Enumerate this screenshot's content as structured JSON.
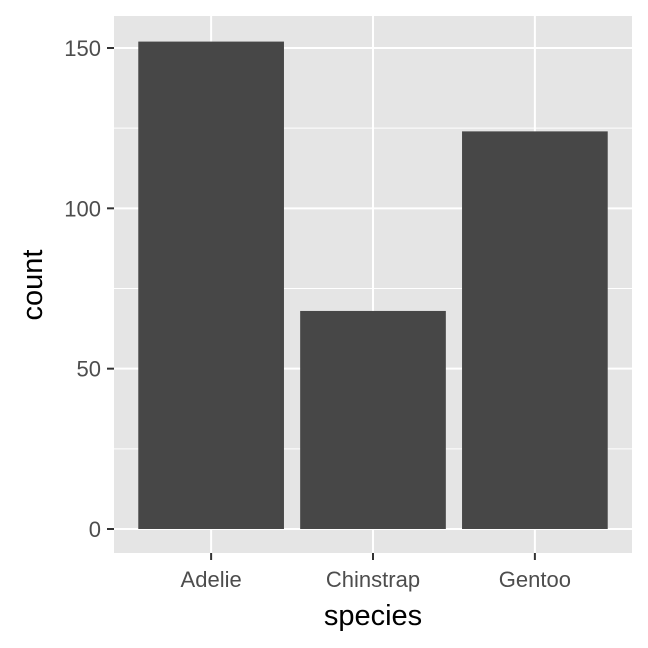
{
  "chart_data": {
    "type": "bar",
    "categories": [
      "Adelie",
      "Chinstrap",
      "Gentoo"
    ],
    "values": [
      152,
      68,
      124
    ],
    "xlabel": "species",
    "ylabel": "count",
    "ylim": [
      -7.6,
      159.6
    ],
    "yticks": [
      0,
      50,
      100,
      150
    ],
    "grid": true,
    "legend": "none",
    "colors": {
      "panel": "#e5e5e5",
      "bar": "#474747",
      "grid": "#ffffff",
      "tick": "#333333",
      "tick_label": "#4d4d4d"
    }
  }
}
